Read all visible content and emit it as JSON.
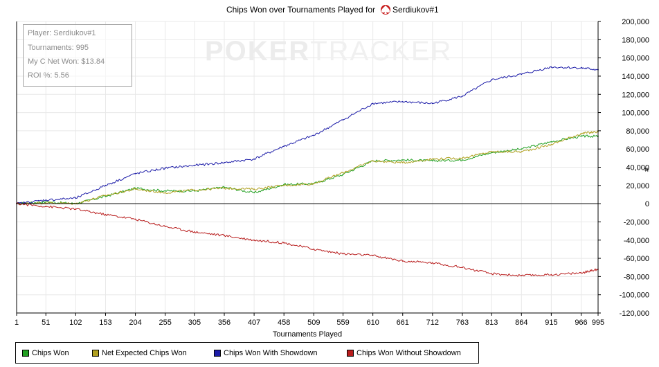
{
  "title": "Chips Won over Tournaments Played for",
  "player_name": "Serdiukov#1",
  "info": {
    "player": "Player: Serdiukov#1",
    "tournaments": "Tournaments: 995",
    "net_won": "My C Net Won: $13.84",
    "roi": "ROI %: 5.56"
  },
  "watermark": {
    "part1": "POKER",
    "part2": "TRACKER"
  },
  "colors": {
    "chips_won": "#22a022",
    "net_expected": "#b0a020",
    "with_showdown": "#1c1ca8",
    "without_showdown": "#b81c1c"
  },
  "chart_data": {
    "type": "line",
    "title": "Chips Won over Tournaments Played for Serdiukov#1",
    "xlabel": "Tournaments Played",
    "ylabel": "#",
    "xlim": [
      1,
      995
    ],
    "ylim": [
      -120000,
      200000
    ],
    "x_ticks": [
      "1",
      "51",
      "102",
      "153",
      "204",
      "255",
      "305",
      "356",
      "407",
      "458",
      "509",
      "559",
      "610",
      "661",
      "712",
      "763",
      "813",
      "864",
      "915",
      "966",
      "995"
    ],
    "y_ticks": [
      "200,000",
      "180,000",
      "160,000",
      "140,000",
      "120,000",
      "100,000",
      "80,000",
      "60,000",
      "40,000",
      "20,000",
      "0",
      "-20,000",
      "-40,000",
      "-60,000",
      "-80,000",
      "-100,000",
      "-120,000"
    ],
    "grid": true,
    "legend_position": "bottom",
    "x": [
      1,
      51,
      102,
      153,
      204,
      255,
      305,
      356,
      407,
      458,
      509,
      559,
      610,
      661,
      712,
      763,
      813,
      864,
      915,
      966,
      995
    ],
    "series": [
      {
        "name": "Chips Won",
        "color": "#22a022",
        "values": [
          0,
          2000,
          0,
          8000,
          17000,
          14000,
          14000,
          18000,
          12000,
          21000,
          22000,
          32000,
          47000,
          48000,
          47000,
          48000,
          56000,
          60000,
          68000,
          74000,
          74000
        ]
      },
      {
        "name": "Net Expected Chips Won",
        "color": "#b0a020",
        "values": [
          0,
          1000,
          0,
          9000,
          16000,
          12000,
          15000,
          17000,
          16000,
          20000,
          22000,
          34000,
          47000,
          45000,
          49000,
          50000,
          57000,
          57000,
          65000,
          77000,
          79000
        ]
      },
      {
        "name": "Chips Won With Showdown",
        "color": "#1c1ca8",
        "values": [
          0,
          4000,
          6000,
          20000,
          33000,
          39000,
          42000,
          45000,
          49000,
          63000,
          75000,
          92000,
          110000,
          112000,
          110000,
          118000,
          136000,
          142000,
          150000,
          149000,
          147000
        ]
      },
      {
        "name": "Chips Won Without Showdown",
        "color": "#b81c1c",
        "values": [
          0,
          -3000,
          -6000,
          -12000,
          -17000,
          -25000,
          -31000,
          -35000,
          -40000,
          -43000,
          -50000,
          -55000,
          -57000,
          -63000,
          -65000,
          -70000,
          -77000,
          -79000,
          -78000,
          -76000,
          -72000
        ]
      }
    ]
  }
}
